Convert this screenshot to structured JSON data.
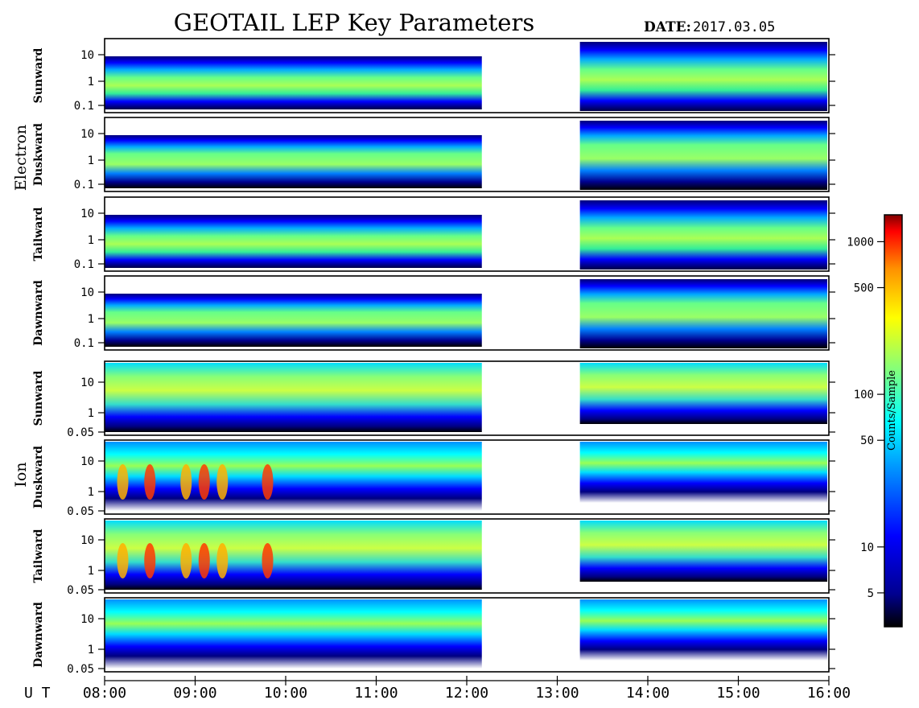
{
  "title": "GEOTAIL LEP Key Parameters",
  "date_label": "DATE:",
  "date_value": "2017.03.05",
  "chart_data": {
    "type": "heatmap",
    "x_axis": {
      "prefix": "U T",
      "range": [
        "08:00",
        "16:00"
      ],
      "tick_labels": [
        "08:00",
        "09:00",
        "10:00",
        "11:00",
        "12:00",
        "13:00",
        "14:00",
        "15:00",
        "16:00"
      ]
    },
    "data_gaps": [
      [
        "12:10",
        "13:15"
      ]
    ],
    "groups": [
      {
        "name": "Electron",
        "panels": [
          {
            "direction": "Sunward",
            "y_tick_labels": [
              "10",
              "1",
              "0.1"
            ]
          },
          {
            "direction": "Duskward",
            "y_tick_labels": [
              "10",
              "1",
              "0.1"
            ]
          },
          {
            "direction": "Tailward",
            "y_tick_labels": [
              "10",
              "1",
              "0.1"
            ]
          },
          {
            "direction": "Dawnward",
            "y_tick_labels": [
              "10",
              "1",
              "0.1"
            ]
          }
        ]
      },
      {
        "name": "Ion",
        "panels": [
          {
            "direction": "Sunward",
            "y_tick_labels": [
              "10",
              "1",
              "0.05"
            ]
          },
          {
            "direction": "Duskward",
            "y_tick_labels": [
              "10",
              "1",
              "0.05"
            ]
          },
          {
            "direction": "Tailward",
            "y_tick_labels": [
              "10",
              "1",
              "0.05"
            ]
          },
          {
            "direction": "Dawnward",
            "y_tick_labels": [
              "10",
              "1",
              "0.05"
            ]
          }
        ]
      }
    ],
    "colorbar": {
      "label": "Counts/Sample",
      "scale": "log",
      "range": [
        3,
        1500
      ],
      "tick_labels": [
        "1000",
        "500",
        "100",
        "50",
        "10",
        "5"
      ],
      "colors": [
        "#000000",
        "#000090",
        "#0000ff",
        "#0090ff",
        "#00ffff",
        "#7fff7f",
        "#ffff00",
        "#ff9000",
        "#ff0000",
        "#800000"
      ]
    }
  }
}
